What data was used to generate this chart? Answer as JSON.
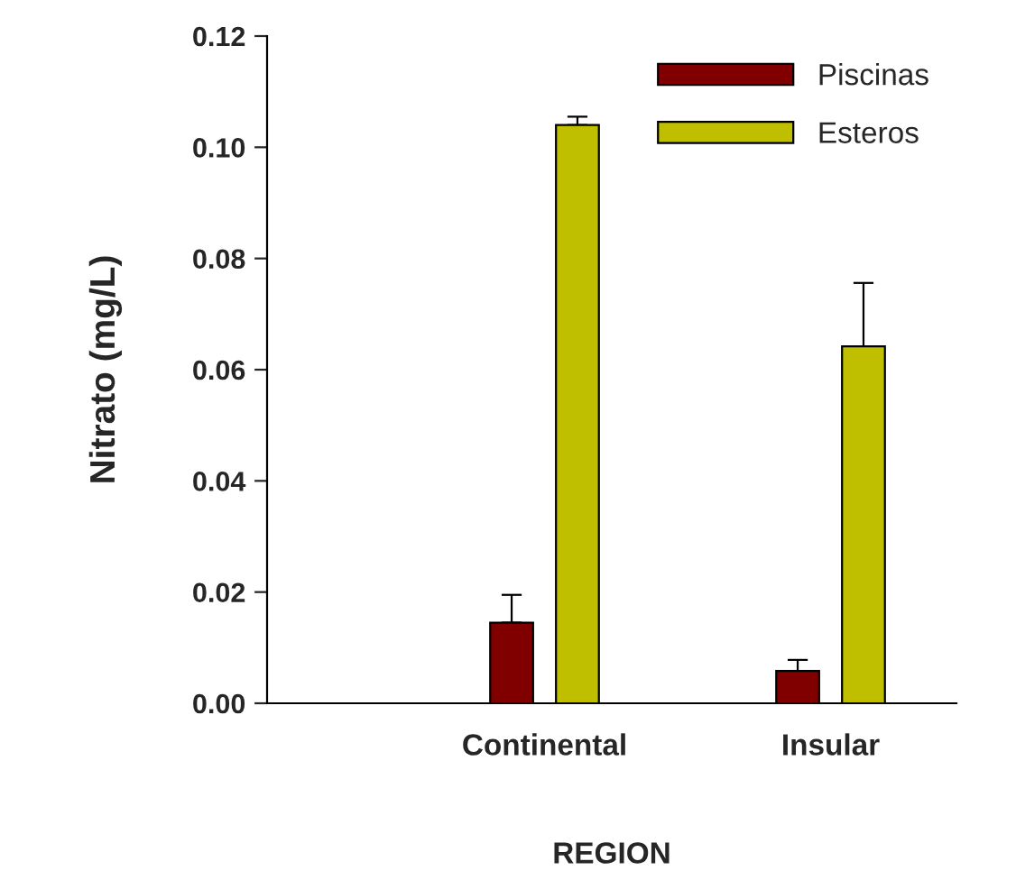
{
  "chart_data": {
    "type": "bar",
    "xlabel": "REGION",
    "ylabel": "Nitrato (mg/L)",
    "categories": [
      "Continental",
      "Insular"
    ],
    "series": [
      {
        "name": "Piscinas",
        "color": "#800000",
        "values": [
          0.0145,
          0.0058
        ],
        "errors": [
          [
            0.0145,
            0.0195
          ],
          [
            0.0058,
            0.0078
          ]
        ]
      },
      {
        "name": "Esteros",
        "color": "#bfbf00",
        "values": [
          0.104,
          0.0642
        ],
        "errors": [
          [
            0.104,
            0.1055
          ],
          [
            0.0642,
            0.0756
          ]
        ]
      }
    ],
    "ylim": [
      0,
      0.12
    ],
    "yticks": [
      {
        "value": 0,
        "label": "0.00"
      },
      {
        "value": 0.02,
        "label": "0.02"
      },
      {
        "value": 0.04,
        "label": "0.04"
      },
      {
        "value": 0.06,
        "label": "0.06"
      },
      {
        "value": 0.08,
        "label": "0.08"
      },
      {
        "value": 0.1,
        "label": "0.10"
      },
      {
        "value": 0.12,
        "label": "0.12"
      }
    ],
    "grid": false,
    "legend": "top right"
  }
}
